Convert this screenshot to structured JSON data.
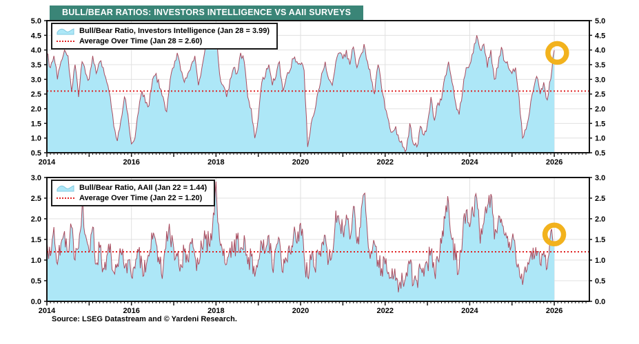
{
  "page": {
    "title": "BULL/BEAR RATIOS: INVESTORS INTELLIGENCE VS AAII SURVEYS",
    "source": "Source: LSEG Datastream and © Yardeni Research."
  },
  "colors": {
    "header_bg": "#3A8577",
    "header_text": "#FFFFFF",
    "area_fill": "#ADE7F7",
    "series_line": "#A94B5E",
    "average_line": "#E01F1F",
    "highlight_ring": "#F2B21D",
    "grid": "#E0E0E0",
    "axis": "#111111"
  },
  "chart_data": [
    {
      "type": "area",
      "name": "investors-intelligence-bull-bear",
      "legend_series": "Bull/Bear Ratio, Investors Intelligence (Jan 28 = 3.99)",
      "legend_average": "Average Over Time (Jan 28 = 2.60)",
      "average": 2.6,
      "last_point": {
        "date": "Jan 28",
        "value": 3.99
      },
      "ylim": [
        0.5,
        5.0
      ],
      "ytick_step": 0.5,
      "xlim": [
        2014,
        2026.83
      ],
      "xticks_labeled": [
        "2014",
        "2016",
        "2018",
        "2020",
        "2022",
        "2024",
        "2026"
      ],
      "x_start": 2014.0,
      "x_step_years": 0.0833333,
      "highlight": {
        "x": 2026.07,
        "value": 3.9
      },
      "values": [
        3.9,
        3.4,
        3.8,
        3.0,
        3.6,
        4.0,
        3.8,
        2.6,
        3.5,
        2.4,
        3.6,
        3.2,
        3.0,
        3.8,
        3.2,
        3.6,
        3.4,
        2.9,
        2.4,
        1.4,
        0.9,
        1.6,
        2.4,
        1.8,
        0.8,
        1.0,
        1.9,
        2.6,
        2.2,
        2.1,
        3.0,
        3.2,
        2.7,
        2.4,
        1.9,
        3.0,
        3.4,
        3.9,
        3.3,
        2.9,
        3.2,
        3.5,
        3.8,
        2.8,
        3.4,
        4.1,
        4.3,
        4.2,
        4.6,
        3.2,
        2.8,
        2.4,
        3.0,
        3.4,
        3.2,
        3.9,
        3.6,
        2.4,
        2.0,
        1.0,
        1.7,
        2.9,
        3.1,
        3.5,
        2.8,
        3.1,
        3.6,
        2.6,
        3.1,
        3.3,
        3.7,
        3.6,
        3.5,
        3.3,
        0.7,
        1.5,
        1.9,
        2.6,
        3.2,
        3.6,
        3.0,
        2.8,
        3.6,
        3.9,
        3.7,
        4.0,
        3.5,
        4.1,
        3.4,
        3.8,
        4.2,
        3.6,
        3.0,
        2.5,
        3.5,
        2.7,
        2.0,
        1.6,
        1.2,
        1.4,
        0.9,
        0.7,
        0.6,
        1.5,
        0.8,
        0.7,
        1.4,
        1.1,
        1.5,
        2.4,
        1.6,
        2.2,
        2.3,
        3.1,
        3.6,
        2.9,
        2.2,
        1.8,
        2.6,
        3.4,
        3.5,
        3.9,
        4.5,
        4.0,
        4.2,
        3.4,
        4.0,
        3.0,
        3.4,
        4.1,
        3.6,
        3.4,
        3.2,
        3.4,
        2.4,
        1.0,
        1.3,
        1.9,
        2.6,
        3.1,
        2.5,
        2.9,
        2.3,
        3.0,
        3.99
      ]
    },
    {
      "type": "area",
      "name": "aaii-bull-bear",
      "legend_series": "Bull/Bear Ratio, AAII (Jan 22 = 1.44)",
      "legend_average": "Average Over Time (Jan 22 = 1.20)",
      "average": 1.2,
      "last_point": {
        "date": "Jan 22",
        "value": 1.44
      },
      "ylim": [
        0.0,
        3.0
      ],
      "ytick_step": 0.5,
      "xlim": [
        2014,
        2026.83
      ],
      "xticks_labeled": [
        "2014",
        "2016",
        "2018",
        "2020",
        "2022",
        "2024",
        "2026"
      ],
      "x_start": 2014.0,
      "x_step_years": 0.0833333,
      "highlight": {
        "x": 2026.0,
        "value": 1.62
      },
      "values": [
        1.5,
        1.1,
        1.8,
        0.9,
        1.4,
        1.7,
        1.2,
        1.8,
        1.0,
        1.3,
        2.3,
        1.6,
        1.2,
        1.8,
        0.9,
        1.3,
        0.8,
        1.1,
        1.4,
        0.7,
        0.9,
        1.2,
        0.8,
        1.0,
        0.6,
        0.8,
        1.2,
        0.9,
        0.7,
        1.1,
        1.5,
        1.4,
        0.9,
        0.8,
        1.7,
        1.6,
        1.3,
        1.1,
        0.9,
        1.2,
        1.0,
        1.4,
        1.1,
        0.9,
        1.3,
        1.5,
        1.4,
        1.8,
        2.9,
        1.5,
        1.1,
        0.9,
        1.3,
        1.2,
        1.5,
        1.3,
        1.6,
        0.9,
        1.1,
        0.6,
        1.0,
        1.4,
        1.2,
        1.6,
        0.8,
        1.3,
        1.5,
        0.7,
        1.0,
        1.2,
        1.6,
        1.4,
        1.9,
        1.1,
        0.6,
        1.0,
        0.8,
        1.2,
        1.4,
        1.6,
        1.0,
        1.2,
        2.2,
        1.9,
        1.7,
        2.1,
        1.5,
        2.3,
        1.4,
        1.8,
        2.6,
        1.6,
        1.2,
        1.4,
        1.0,
        0.8,
        0.9,
        0.7,
        0.8,
        0.5,
        0.4,
        0.5,
        0.7,
        0.9,
        0.4,
        0.5,
        0.8,
        0.6,
        0.9,
        1.2,
        0.7,
        1.0,
        1.4,
        2.0,
        2.4,
        1.5,
        1.0,
        0.8,
        1.6,
        2.2,
        1.8,
        2.1,
        2.5,
        1.4,
        1.9,
        2.3,
        2.6,
        1.5,
        1.9,
        2.0,
        1.6,
        1.3,
        1.5,
        1.2,
        0.8,
        0.4,
        0.7,
        1.0,
        1.3,
        1.1,
        0.9,
        1.2,
        0.8,
        1.7,
        1.44
      ]
    }
  ]
}
